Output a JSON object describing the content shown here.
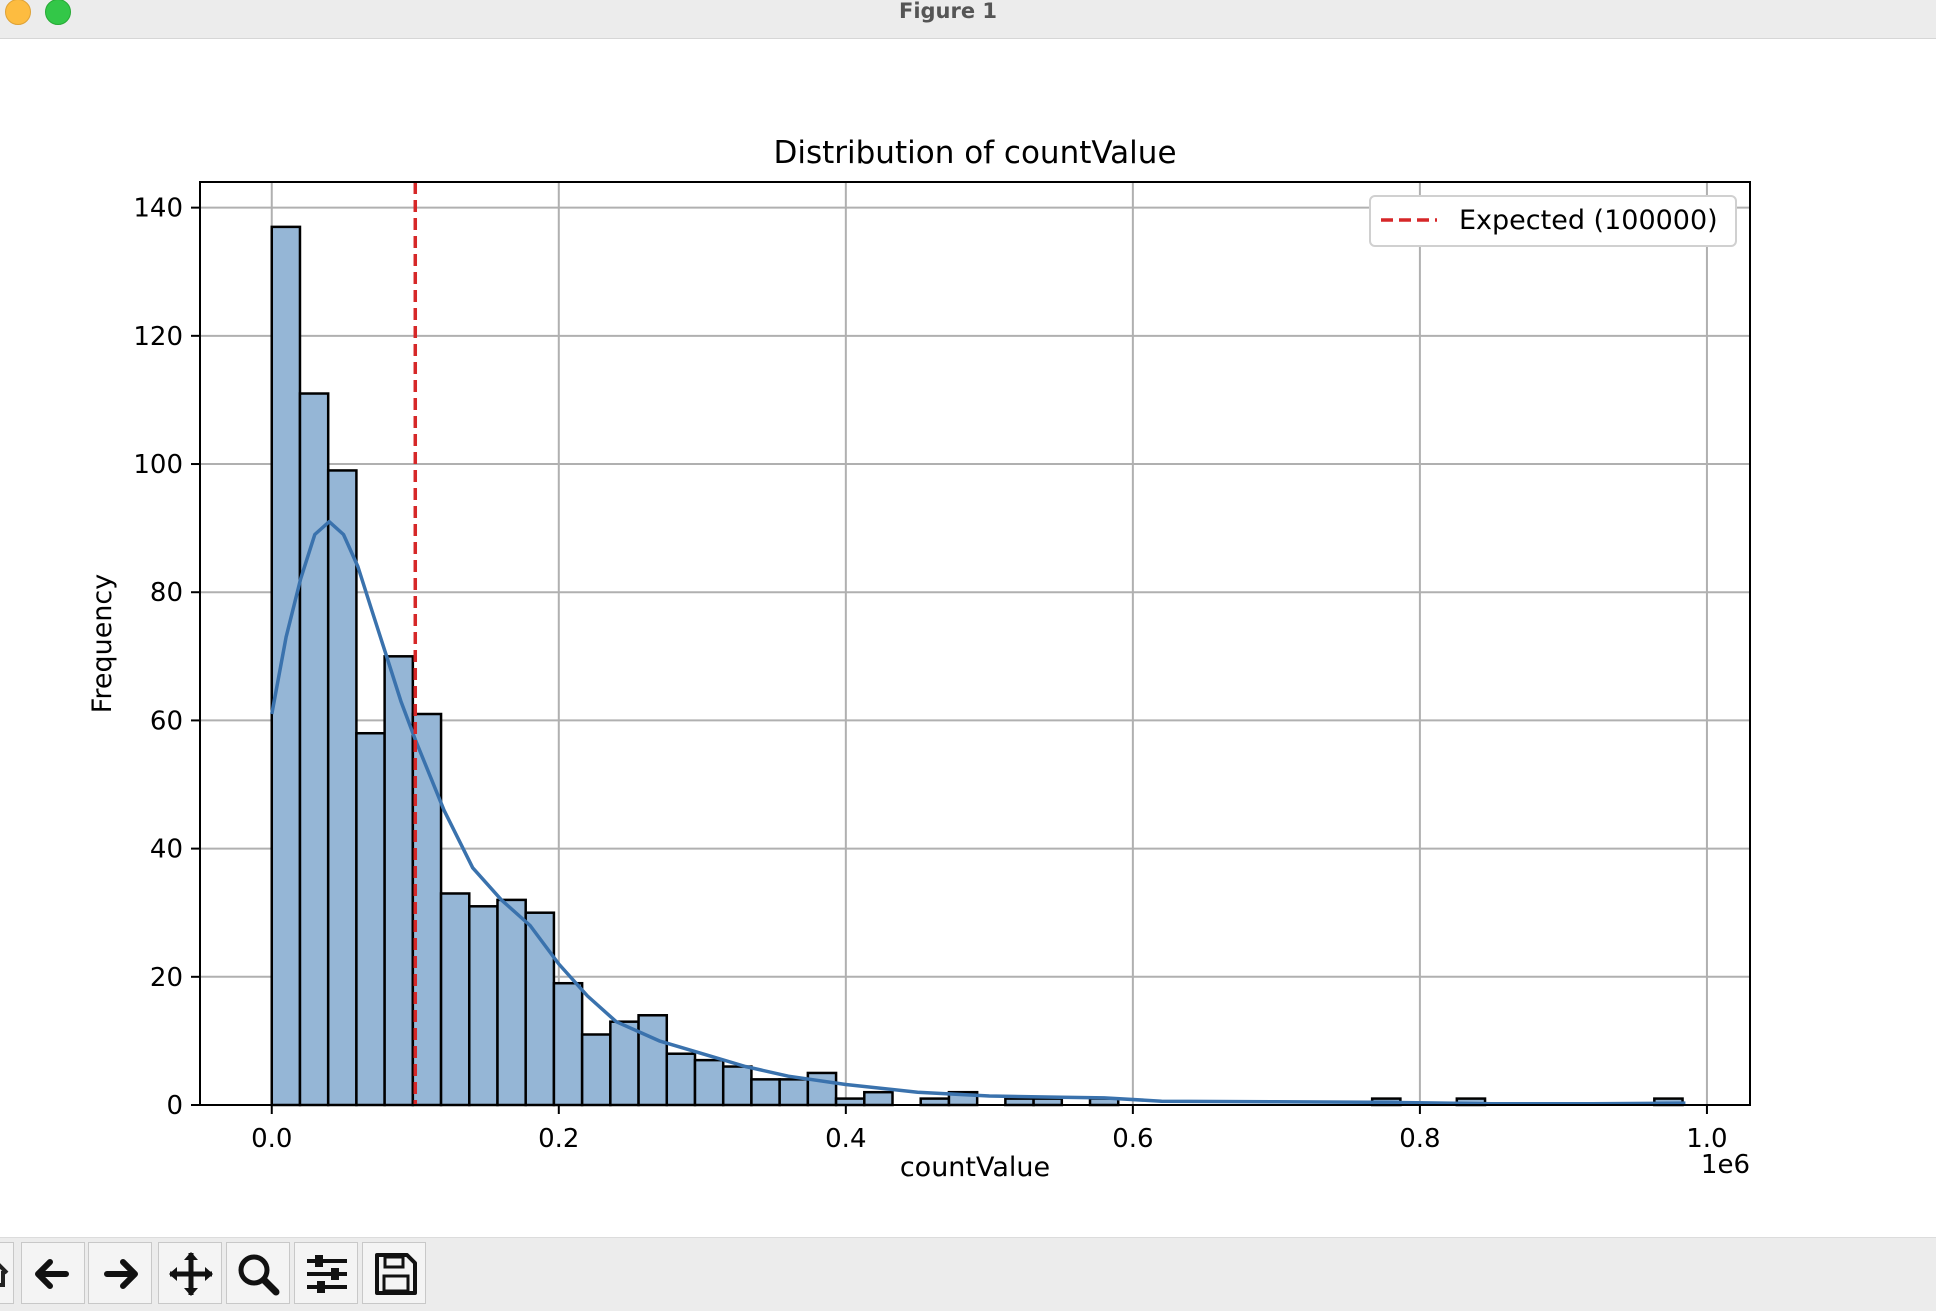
{
  "window": {
    "title": "Figure 1"
  },
  "toolbar": {
    "buttons": [
      {
        "name": "home-icon"
      },
      {
        "name": "back-arrow-icon"
      },
      {
        "name": "forward-arrow-icon"
      },
      {
        "name": "pan-icon"
      },
      {
        "name": "zoom-icon"
      },
      {
        "name": "configure-subplots-icon"
      },
      {
        "name": "save-icon"
      }
    ]
  },
  "colors": {
    "bar_fill": "#95b6d6",
    "bar_edge": "#000000",
    "kde_line": "#3a72ad",
    "expected_line": "#d62728",
    "grid": "#b0b0b0"
  },
  "chart_data": {
    "type": "bar",
    "title": "Distribution of countValue",
    "xlabel": "countValue",
    "ylabel": "Frequency",
    "x_offset_label": "1e6",
    "xlim": [
      -0.05,
      1.03
    ],
    "ylim": [
      0,
      144
    ],
    "x_scale_note": "values in units of 1e6",
    "xticks": [
      0.0,
      0.2,
      0.4,
      0.6,
      0.8,
      1.0
    ],
    "xtick_labels": [
      "0.0",
      "0.2",
      "0.4",
      "0.6",
      "0.8",
      "1.0"
    ],
    "yticks": [
      0,
      20,
      40,
      60,
      80,
      100,
      120,
      140
    ],
    "ytick_labels": [
      "0",
      "20",
      "40",
      "60",
      "80",
      "100",
      "120",
      "140"
    ],
    "grid": true,
    "bin_start": 0.0,
    "bin_width": 0.01966,
    "series": [
      {
        "kind": "histogram",
        "values": [
          137,
          111,
          99,
          58,
          70,
          61,
          33,
          31,
          32,
          30,
          19,
          11,
          13,
          14,
          8,
          7,
          6,
          4,
          4,
          5,
          1,
          2,
          0,
          1,
          2,
          0,
          1,
          1,
          0,
          1,
          0,
          0,
          0,
          0,
          0,
          0,
          0,
          0,
          0,
          1,
          0,
          0,
          1,
          0,
          0,
          0,
          0,
          0,
          0,
          1
        ]
      },
      {
        "kind": "kde",
        "points": [
          [
            0.0,
            61
          ],
          [
            0.01,
            73
          ],
          [
            0.02,
            82
          ],
          [
            0.03,
            89
          ],
          [
            0.04,
            91
          ],
          [
            0.05,
            89
          ],
          [
            0.06,
            84
          ],
          [
            0.07,
            77
          ],
          [
            0.08,
            70
          ],
          [
            0.09,
            63
          ],
          [
            0.1,
            57
          ],
          [
            0.12,
            46
          ],
          [
            0.14,
            37
          ],
          [
            0.16,
            32
          ],
          [
            0.18,
            28
          ],
          [
            0.2,
            22
          ],
          [
            0.22,
            17
          ],
          [
            0.24,
            13
          ],
          [
            0.27,
            10
          ],
          [
            0.3,
            8
          ],
          [
            0.33,
            6
          ],
          [
            0.36,
            4.5
          ],
          [
            0.4,
            3.2
          ],
          [
            0.45,
            2
          ],
          [
            0.5,
            1.4
          ],
          [
            0.55,
            1.2
          ],
          [
            0.58,
            1.1
          ],
          [
            0.62,
            0.6
          ],
          [
            0.7,
            0.5
          ],
          [
            0.78,
            0.4
          ],
          [
            0.85,
            0.2
          ],
          [
            0.92,
            0.2
          ],
          [
            0.985,
            0.3
          ]
        ]
      },
      {
        "kind": "vline",
        "name": "Expected (100000)",
        "x": 0.1,
        "style": "dashed"
      }
    ],
    "legend": {
      "entries": [
        "Expected (100000)"
      ],
      "placement": "top-right"
    }
  }
}
